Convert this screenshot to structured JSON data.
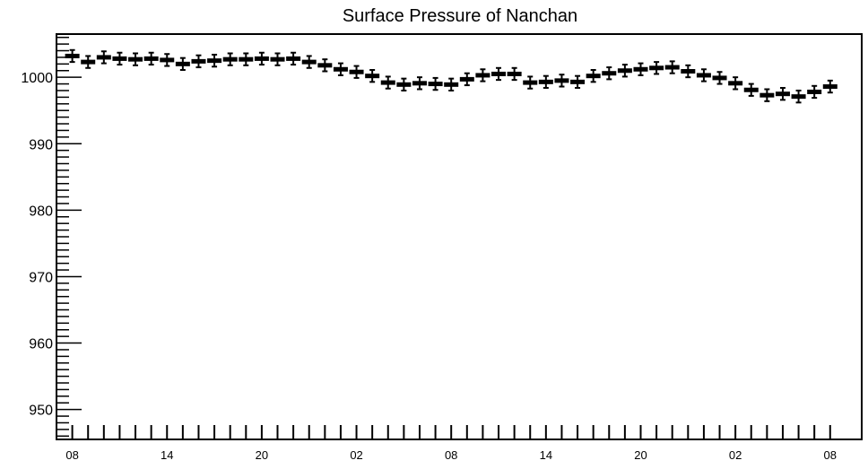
{
  "chart_data": {
    "type": "scatter",
    "title": "Surface Pressure of Nanchan",
    "xlabel": "",
    "ylabel": "",
    "ylim": [
      945.5,
      1006.5
    ],
    "xlim": [
      -1,
      50
    ],
    "y_ticks": [
      950,
      960,
      970,
      980,
      990,
      1000
    ],
    "y_tick_labels": [
      "950",
      "960",
      "970",
      "980",
      "990",
      "1000"
    ],
    "x_tick_positions": [
      0,
      6,
      12,
      18,
      24,
      30,
      36,
      42,
      48
    ],
    "x_tick_labels": [
      "08",
      "14",
      "20",
      "02",
      "08",
      "14",
      "20",
      "02",
      "08"
    ],
    "grid": false,
    "marker": "filled-box-with-error-bar",
    "series": [
      {
        "x": [
          0,
          1,
          2,
          3,
          4,
          5,
          6,
          7,
          8,
          9,
          10,
          11,
          12,
          13,
          14,
          15,
          16,
          17,
          18,
          19,
          20,
          21,
          22,
          23,
          24,
          25,
          26,
          27,
          28,
          29,
          30,
          31,
          32,
          33,
          34,
          35,
          36,
          37,
          38,
          39,
          40,
          41,
          42,
          43,
          44,
          45,
          46,
          47,
          48
        ],
        "values": [
          1003.2,
          1002.3,
          1003.0,
          1002.8,
          1002.7,
          1002.8,
          1002.6,
          1002.0,
          1002.4,
          1002.5,
          1002.7,
          1002.7,
          1002.8,
          1002.7,
          1002.8,
          1002.3,
          1001.8,
          1001.2,
          1000.8,
          1000.2,
          999.2,
          998.9,
          999.1,
          999.0,
          998.9,
          999.7,
          1000.3,
          1000.5,
          1000.5,
          999.2,
          999.3,
          999.5,
          999.3,
          1000.2,
          1000.6,
          1001.0,
          1001.2,
          1001.4,
          1001.5,
          1000.9,
          1000.3,
          999.9,
          999.1,
          998.1,
          997.3,
          997.5,
          997.1,
          997.8,
          998.6
        ],
        "errors": [
          0.9,
          0.9,
          0.9,
          0.9,
          0.9,
          0.9,
          0.9,
          0.9,
          0.9,
          0.9,
          0.9,
          0.9,
          0.9,
          0.9,
          0.9,
          0.9,
          0.9,
          0.9,
          0.9,
          0.9,
          0.9,
          0.9,
          0.9,
          0.9,
          0.9,
          0.9,
          0.9,
          0.9,
          0.9,
          0.9,
          0.9,
          0.9,
          0.9,
          0.9,
          0.9,
          0.9,
          0.9,
          0.9,
          0.9,
          0.9,
          0.9,
          0.9,
          0.9,
          0.9,
          0.9,
          0.9,
          0.9,
          0.9,
          0.9
        ]
      }
    ]
  }
}
